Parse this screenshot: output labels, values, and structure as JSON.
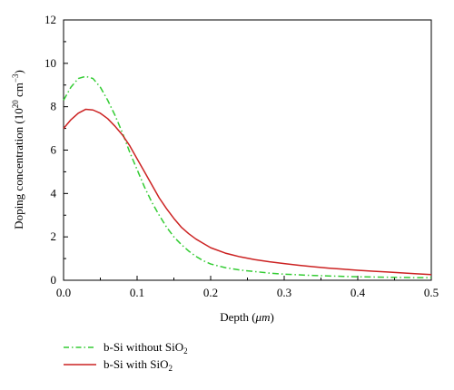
{
  "chart_data": {
    "type": "line",
    "xlabel": "Depth (",
    "xlabel_unit": "μm",
    "xlabel_end": ")",
    "ylabel": "Doping concentration (10",
    "ylabel_sup1": "20",
    "ylabel_mid": " cm",
    "ylabel_sup2": "−3",
    "ylabel_end": ")",
    "xlim": [
      0,
      0.5
    ],
    "ylim": [
      0,
      12
    ],
    "xticks": [
      0.0,
      0.1,
      0.2,
      0.3,
      0.4,
      0.5
    ],
    "xtick_labels": [
      "0.0",
      "0.1",
      "0.2",
      "0.3",
      "0.4",
      "0.5"
    ],
    "yticks": [
      0,
      2,
      4,
      6,
      8,
      10,
      12
    ],
    "ytick_labels": [
      "0",
      "2",
      "4",
      "6",
      "8",
      "10",
      "12"
    ],
    "grid": false,
    "legend_position": "bottom-left, below plot",
    "series": [
      {
        "name": "b-Si without SiO",
        "name_sub": "2",
        "color": "#33cc33",
        "dash": "dash-dot",
        "x": [
          0.0,
          0.01,
          0.02,
          0.03,
          0.04,
          0.05,
          0.06,
          0.07,
          0.08,
          0.09,
          0.1,
          0.11,
          0.12,
          0.13,
          0.14,
          0.15,
          0.16,
          0.17,
          0.18,
          0.19,
          0.2,
          0.22,
          0.24,
          0.26,
          0.28,
          0.3,
          0.32,
          0.34,
          0.36,
          0.38,
          0.4,
          0.42,
          0.44,
          0.46,
          0.48,
          0.5
        ],
        "y": [
          8.3,
          8.9,
          9.3,
          9.4,
          9.3,
          8.9,
          8.3,
          7.6,
          6.8,
          5.9,
          5.1,
          4.3,
          3.6,
          3.0,
          2.45,
          2.0,
          1.65,
          1.35,
          1.1,
          0.9,
          0.75,
          0.58,
          0.47,
          0.4,
          0.33,
          0.28,
          0.25,
          0.22,
          0.2,
          0.18,
          0.16,
          0.15,
          0.14,
          0.13,
          0.12,
          0.12
        ]
      },
      {
        "name": "b-Si with SiO",
        "name_sub": "2",
        "color": "#cc2222",
        "dash": "solid",
        "x": [
          0.0,
          0.01,
          0.02,
          0.03,
          0.04,
          0.05,
          0.06,
          0.07,
          0.08,
          0.09,
          0.1,
          0.11,
          0.12,
          0.13,
          0.14,
          0.15,
          0.16,
          0.17,
          0.18,
          0.19,
          0.2,
          0.22,
          0.24,
          0.26,
          0.28,
          0.3,
          0.32,
          0.34,
          0.36,
          0.38,
          0.4,
          0.42,
          0.44,
          0.46,
          0.48,
          0.5
        ],
        "y": [
          7.0,
          7.4,
          7.7,
          7.88,
          7.85,
          7.7,
          7.45,
          7.1,
          6.7,
          6.2,
          5.6,
          5.0,
          4.4,
          3.8,
          3.3,
          2.85,
          2.45,
          2.15,
          1.9,
          1.7,
          1.5,
          1.25,
          1.08,
          0.95,
          0.85,
          0.77,
          0.69,
          0.62,
          0.56,
          0.51,
          0.46,
          0.42,
          0.38,
          0.34,
          0.3,
          0.26
        ]
      }
    ]
  }
}
